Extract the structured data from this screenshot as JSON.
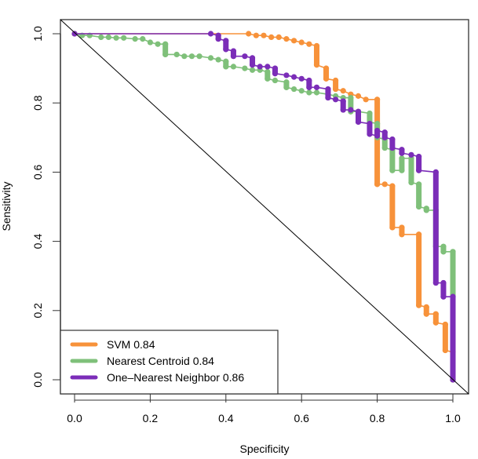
{
  "chart_data": {
    "type": "line",
    "title": "",
    "xlabel": "Specificity",
    "ylabel": "Sensitivity",
    "xlim": [
      0,
      1
    ],
    "ylim": [
      0,
      1
    ],
    "x_ticks": [
      "0.0",
      "0.2",
      "0.4",
      "0.6",
      "0.8",
      "1.0"
    ],
    "y_ticks": [
      "0.0",
      "0.2",
      "0.4",
      "0.6",
      "0.8",
      "1.0"
    ],
    "x_tick_values": [
      0,
      0.2,
      0.4,
      0.6,
      0.8,
      1.0
    ],
    "y_tick_values": [
      0,
      0.2,
      0.4,
      0.6,
      0.8,
      1.0
    ],
    "grid": false,
    "legend_position": "bottom-left",
    "reference_line": {
      "from": [
        0,
        1
      ],
      "to": [
        1,
        0
      ],
      "color": "#000000"
    },
    "series": [
      {
        "name": "SVM",
        "auc": "0.84",
        "legend_label": "SVM  0.84",
        "color": "#F7923A",
        "points": [
          [
            0.0,
            1.0
          ],
          [
            0.46,
            1.0
          ],
          [
            0.48,
            0.995
          ],
          [
            0.5,
            0.995
          ],
          [
            0.52,
            0.99
          ],
          [
            0.54,
            0.99
          ],
          [
            0.56,
            0.985
          ],
          [
            0.58,
            0.98
          ],
          [
            0.6,
            0.975
          ],
          [
            0.62,
            0.97
          ],
          [
            0.64,
            0.965
          ],
          [
            0.64,
            0.91
          ],
          [
            0.665,
            0.9
          ],
          [
            0.665,
            0.87
          ],
          [
            0.69,
            0.865
          ],
          [
            0.69,
            0.84
          ],
          [
            0.71,
            0.835
          ],
          [
            0.73,
            0.825
          ],
          [
            0.75,
            0.82
          ],
          [
            0.77,
            0.81
          ],
          [
            0.8,
            0.81
          ],
          [
            0.8,
            0.565
          ],
          [
            0.82,
            0.565
          ],
          [
            0.84,
            0.56
          ],
          [
            0.84,
            0.44
          ],
          [
            0.865,
            0.44
          ],
          [
            0.865,
            0.42
          ],
          [
            0.91,
            0.42
          ],
          [
            0.91,
            0.215
          ],
          [
            0.93,
            0.21
          ],
          [
            0.93,
            0.19
          ],
          [
            0.955,
            0.19
          ],
          [
            0.955,
            0.165
          ],
          [
            0.98,
            0.16
          ],
          [
            0.98,
            0.085
          ],
          [
            1.0,
            0.08
          ],
          [
            1.0,
            0.0
          ]
        ]
      },
      {
        "name": "Nearest Centroid",
        "auc": "0.84",
        "legend_label": "Nearest Centroid  0.84",
        "color": "#7FC07A",
        "points": [
          [
            0.0,
            1.0
          ],
          [
            0.02,
            0.995
          ],
          [
            0.04,
            0.995
          ],
          [
            0.07,
            0.99
          ],
          [
            0.09,
            0.99
          ],
          [
            0.11,
            0.988
          ],
          [
            0.13,
            0.988
          ],
          [
            0.16,
            0.985
          ],
          [
            0.18,
            0.985
          ],
          [
            0.2,
            0.975
          ],
          [
            0.22,
            0.97
          ],
          [
            0.24,
            0.97
          ],
          [
            0.24,
            0.94
          ],
          [
            0.27,
            0.94
          ],
          [
            0.29,
            0.935
          ],
          [
            0.31,
            0.935
          ],
          [
            0.33,
            0.935
          ],
          [
            0.36,
            0.93
          ],
          [
            0.38,
            0.925
          ],
          [
            0.4,
            0.92
          ],
          [
            0.4,
            0.905
          ],
          [
            0.42,
            0.905
          ],
          [
            0.45,
            0.9
          ],
          [
            0.47,
            0.895
          ],
          [
            0.49,
            0.895
          ],
          [
            0.51,
            0.89
          ],
          [
            0.51,
            0.87
          ],
          [
            0.53,
            0.865
          ],
          [
            0.56,
            0.86
          ],
          [
            0.56,
            0.845
          ],
          [
            0.58,
            0.84
          ],
          [
            0.6,
            0.835
          ],
          [
            0.62,
            0.83
          ],
          [
            0.64,
            0.83
          ],
          [
            0.67,
            0.825
          ],
          [
            0.69,
            0.82
          ],
          [
            0.71,
            0.815
          ],
          [
            0.73,
            0.815
          ],
          [
            0.73,
            0.775
          ],
          [
            0.75,
            0.775
          ],
          [
            0.78,
            0.77
          ],
          [
            0.78,
            0.745
          ],
          [
            0.8,
            0.74
          ],
          [
            0.8,
            0.7
          ],
          [
            0.82,
            0.695
          ],
          [
            0.82,
            0.67
          ],
          [
            0.84,
            0.665
          ],
          [
            0.84,
            0.605
          ],
          [
            0.865,
            0.605
          ],
          [
            0.865,
            0.64
          ],
          [
            0.89,
            0.64
          ],
          [
            0.89,
            0.57
          ],
          [
            0.91,
            0.565
          ],
          [
            0.91,
            0.5
          ],
          [
            0.93,
            0.495
          ],
          [
            0.93,
            0.49
          ],
          [
            0.955,
            0.49
          ],
          [
            0.955,
            0.385
          ],
          [
            0.975,
            0.385
          ],
          [
            0.975,
            0.37
          ],
          [
            1.0,
            0.37
          ],
          [
            1.0,
            0.0
          ]
        ]
      },
      {
        "name": "One-Nearest Neighbor",
        "auc": "0.86",
        "legend_label": "One–Nearest Neighbor 0.86",
        "color": "#7B2DB8",
        "points": [
          [
            0.0,
            1.0
          ],
          [
            0.36,
            1.0
          ],
          [
            0.38,
            0.995
          ],
          [
            0.38,
            0.985
          ],
          [
            0.4,
            0.98
          ],
          [
            0.4,
            0.955
          ],
          [
            0.42,
            0.95
          ],
          [
            0.42,
            0.935
          ],
          [
            0.45,
            0.935
          ],
          [
            0.47,
            0.93
          ],
          [
            0.47,
            0.91
          ],
          [
            0.49,
            0.905
          ],
          [
            0.51,
            0.905
          ],
          [
            0.53,
            0.9
          ],
          [
            0.53,
            0.885
          ],
          [
            0.56,
            0.88
          ],
          [
            0.58,
            0.875
          ],
          [
            0.6,
            0.87
          ],
          [
            0.62,
            0.865
          ],
          [
            0.62,
            0.845
          ],
          [
            0.64,
            0.845
          ],
          [
            0.67,
            0.84
          ],
          [
            0.67,
            0.815
          ],
          [
            0.69,
            0.81
          ],
          [
            0.71,
            0.805
          ],
          [
            0.71,
            0.78
          ],
          [
            0.73,
            0.78
          ],
          [
            0.75,
            0.775
          ],
          [
            0.75,
            0.745
          ],
          [
            0.78,
            0.74
          ],
          [
            0.78,
            0.71
          ],
          [
            0.8,
            0.705
          ],
          [
            0.8,
            0.72
          ],
          [
            0.82,
            0.715
          ],
          [
            0.82,
            0.7
          ],
          [
            0.84,
            0.695
          ],
          [
            0.84,
            0.67
          ],
          [
            0.865,
            0.665
          ],
          [
            0.865,
            0.655
          ],
          [
            0.89,
            0.65
          ],
          [
            0.91,
            0.645
          ],
          [
            0.91,
            0.605
          ],
          [
            0.955,
            0.6
          ],
          [
            0.955,
            0.28
          ],
          [
            0.975,
            0.28
          ],
          [
            0.975,
            0.24
          ],
          [
            1.0,
            0.24
          ],
          [
            1.0,
            0.0
          ]
        ]
      }
    ]
  }
}
